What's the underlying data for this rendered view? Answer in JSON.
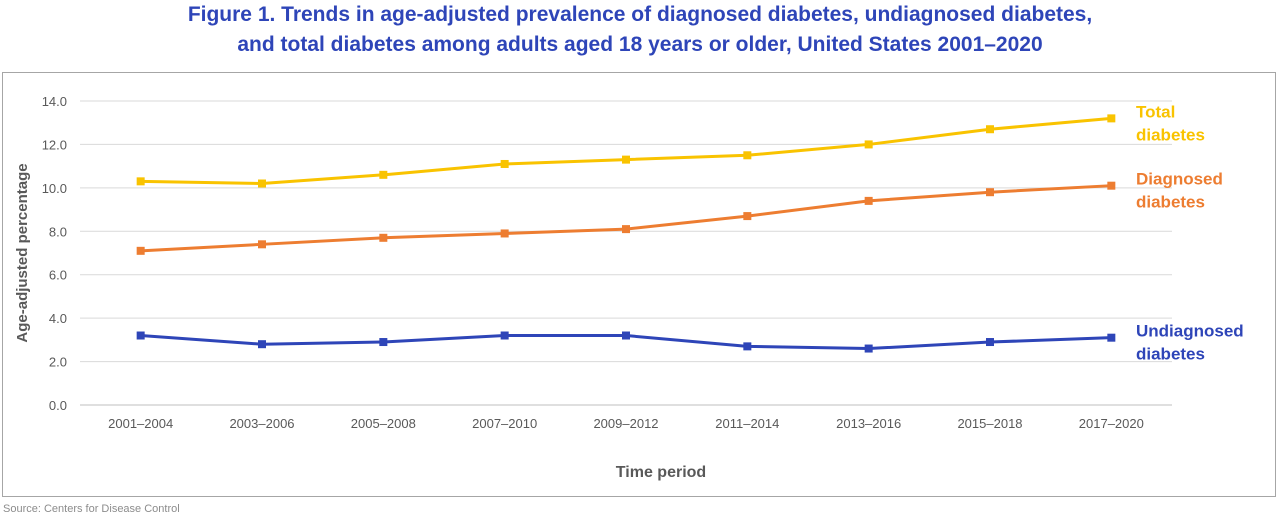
{
  "title_lines": [
    "Figure 1. Trends in age-adjusted prevalence of diagnosed diabetes, undiagnosed diabetes,",
    "and total diabetes among adults aged 18 years or older, United States 2001–2020"
  ],
  "source": "Source: Centers for Disease Control",
  "colors": {
    "title": "#2e45b8",
    "total": "#f9c300",
    "diagnosed": "#ed7d31",
    "undiagnosed": "#2e45b8",
    "axis_text": "#595959",
    "grid": "#d9d9d9"
  },
  "chart_data": {
    "type": "line",
    "title": "Figure 1. Trends in age-adjusted prevalence of diagnosed diabetes, undiagnosed diabetes, and total diabetes among adults aged 18 years or older, United States 2001–2020",
    "xlabel": "Time period",
    "ylabel": "Age-adjusted percentage",
    "ylim": [
      0,
      14
    ],
    "yticks": [
      "0.0",
      "2.0",
      "4.0",
      "6.0",
      "8.0",
      "10.0",
      "12.0",
      "14.0"
    ],
    "grid": true,
    "legend": "direct labels at right end of lines",
    "categories": [
      "2001–2004",
      "2003–2006",
      "2005–2008",
      "2007–2010",
      "2009–2012",
      "2011–2014",
      "2013–2016",
      "2015–2018",
      "2017–2020"
    ],
    "series": [
      {
        "name": "Total diabetes",
        "label_lines": [
          "Total",
          "diabetes"
        ],
        "color_key": "total",
        "values": [
          10.3,
          10.2,
          10.6,
          11.1,
          11.3,
          11.5,
          12.0,
          12.7,
          13.2
        ]
      },
      {
        "name": "Diagnosed diabetes",
        "label_lines": [
          "Diagnosed",
          "diabetes"
        ],
        "color_key": "diagnosed",
        "values": [
          7.1,
          7.4,
          7.7,
          7.9,
          8.1,
          8.7,
          9.4,
          9.8,
          10.1
        ]
      },
      {
        "name": "Undiagnosed diabetes",
        "label_lines": [
          "Undiagnosed",
          "diabetes"
        ],
        "color_key": "undiagnosed",
        "values": [
          3.2,
          2.8,
          2.9,
          3.2,
          3.2,
          2.7,
          2.6,
          2.9,
          3.1
        ]
      }
    ]
  }
}
